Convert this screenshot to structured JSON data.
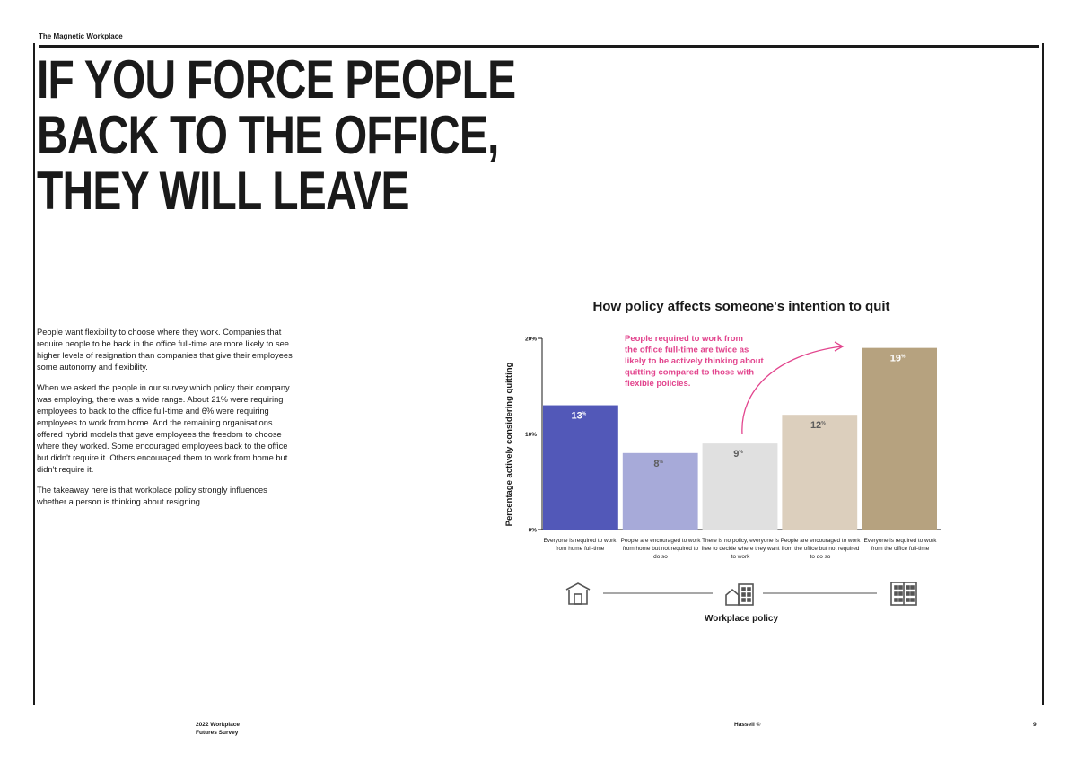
{
  "header": {
    "kicker": "The Magnetic Workplace",
    "headline_lines": [
      "IF YOU FORCE PEOPLE",
      "BACK TO THE OFFICE,",
      "THEY WILL LEAVE"
    ]
  },
  "body": {
    "paragraphs": [
      "People want flexibility to choose where they work. Companies that require people to be back in the office full-time are more likely to see higher levels of resignation than companies that give their employees some autonomy and flexibility.",
      "When we asked the people in our survey which policy their company was employing, there was a wide range. About 21% were requiring employees to back to the office full-time and 6% were requiring employees to work from home. And the remaining organisations offered hybrid models that gave employees the freedom to choose where they worked. Some encouraged employees back to the office but didn't require it. Others encouraged them to work from home but didn't require it.",
      "The takeaway here is that workplace policy strongly influences whether a person is thinking about resigning."
    ]
  },
  "chart_data": {
    "type": "bar",
    "title": "How policy affects someone's intention to quit",
    "xlabel": "Workplace policy",
    "ylabel": "Percentage actively considering quitting",
    "ylim": [
      0,
      20
    ],
    "yticks": [
      "0%",
      "10%",
      "20%"
    ],
    "categories": [
      "Everyone is required to work from home full-time",
      "People are encouraged to work from home but not required to do so",
      "There is no policy, everyone is free to decide where they want to work",
      "People are encouraged to work from the office but not required to do so",
      "Everyone is required to work from the office full-time"
    ],
    "values": [
      13,
      8,
      9,
      12,
      19
    ],
    "value_labels": [
      "13",
      "8",
      "9",
      "12",
      "19"
    ],
    "value_suffix": "%",
    "colors": [
      "#5258b8",
      "#a7aad9",
      "#e0e0e0",
      "#dccfbd",
      "#b6a27f"
    ],
    "label_colors": [
      "#ffffff",
      "#5d5d5d",
      "#5d5d5d",
      "#5d5d5d",
      "#ffffff"
    ],
    "annotation": "People required to work from the office full-time are twice as likely to be actively thinking about quitting compared to those with flexible policies.",
    "annotation_color": "#e2448d",
    "axis_icons": [
      "house-icon",
      "mixed-building-icon",
      "office-building-icon"
    ]
  },
  "footer": {
    "left_line1": "2022 Workplace",
    "left_line2": "Futures Survey",
    "center": "Hassell ©",
    "page_number": "9"
  }
}
